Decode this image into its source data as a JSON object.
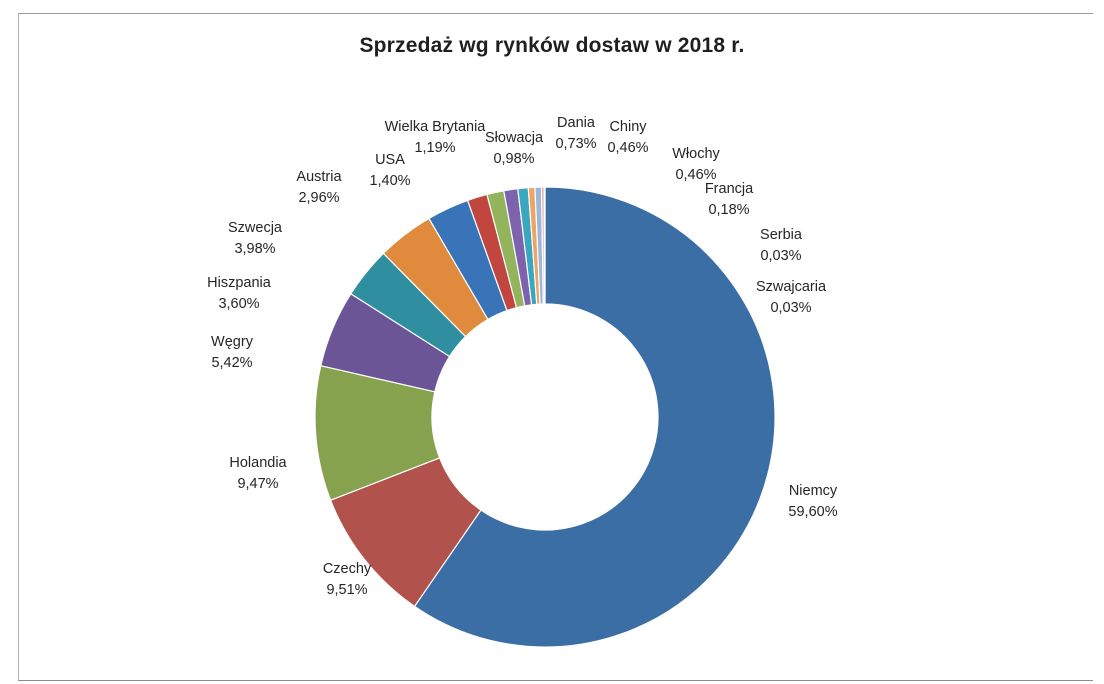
{
  "chart_data": {
    "type": "pie",
    "variant": "doughnut",
    "title": "Sprzedaż wg rynków dostaw w 2018 r.",
    "legend": "none",
    "slices": [
      {
        "name": "Niemcy",
        "value": 59.6,
        "label": "59,60%",
        "color": "#3b6ea5"
      },
      {
        "name": "Czechy",
        "value": 9.51,
        "label": "9,51%",
        "color": "#b2524d"
      },
      {
        "name": "Holandia",
        "value": 9.47,
        "label": "9,47%",
        "color": "#86a24e"
      },
      {
        "name": "Węgry",
        "value": 5.42,
        "label": "5,42%",
        "color": "#6b5596"
      },
      {
        "name": "Hiszpania",
        "value": 3.6,
        "label": "3,60%",
        "color": "#2f8fa0"
      },
      {
        "name": "Szwecja",
        "value": 3.98,
        "label": "3,98%",
        "color": "#e08a3e"
      },
      {
        "name": "Austria",
        "value": 2.96,
        "label": "2,96%",
        "color": "#3a74b8"
      },
      {
        "name": "USA",
        "value": 1.4,
        "label": "1,40%",
        "color": "#c0463f"
      },
      {
        "name": "Wielka Brytania",
        "value": 1.19,
        "label": "1,19%",
        "color": "#93b35c"
      },
      {
        "name": "Słowacja",
        "value": 0.98,
        "label": "0,98%",
        "color": "#7d63ae"
      },
      {
        "name": "Dania",
        "value": 0.73,
        "label": "0,73%",
        "color": "#3aa7c0"
      },
      {
        "name": "Chiny",
        "value": 0.46,
        "label": "0,46%",
        "color": "#f0a463"
      },
      {
        "name": "Włochy",
        "value": 0.46,
        "label": "0,46%",
        "color": "#9bb7dc"
      },
      {
        "name": "Francja",
        "value": 0.18,
        "label": "0,18%",
        "color": "#e3a39c"
      },
      {
        "name": "Serbia",
        "value": 0.03,
        "label": "0,03%",
        "color": "#c5d6a0"
      },
      {
        "name": "Szwajcaria",
        "value": 0.03,
        "label": "0,03%",
        "color": "#b7a9cf"
      }
    ]
  }
}
